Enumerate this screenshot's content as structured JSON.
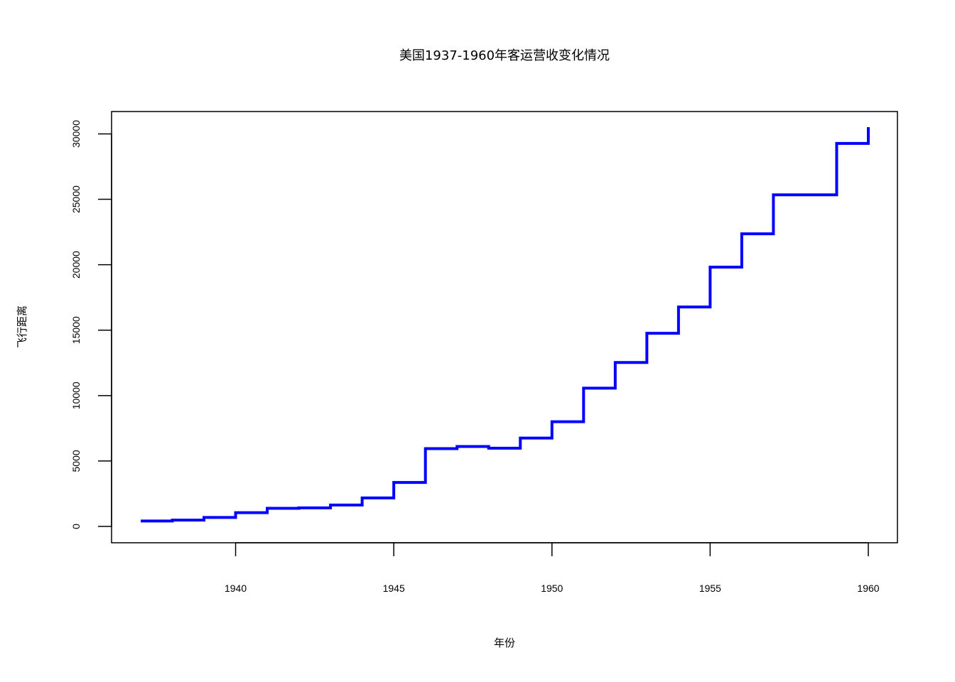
{
  "chart_data": {
    "type": "line",
    "step": true,
    "title": "美国1937-1960年客运营收变化情况",
    "xlabel": "年份",
    "ylabel": "飞行距离",
    "xlim": [
      1937,
      1960
    ],
    "ylim": [
      0,
      30514
    ],
    "x_ticks": [
      "1940",
      "1945",
      "1950",
      "1955",
      "1960"
    ],
    "y_ticks": [
      "0",
      "5000",
      "10000",
      "15000",
      "20000",
      "25000",
      "30000"
    ],
    "grid": false,
    "line_color": "#0000ff",
    "series": [
      {
        "x": [
          1937,
          1938,
          1939,
          1940,
          1941,
          1942,
          1943,
          1944,
          1945,
          1946,
          1947,
          1948,
          1949,
          1950,
          1951,
          1952,
          1953,
          1954,
          1955,
          1956,
          1957,
          1958,
          1959,
          1960
        ],
        "values": [
          412,
          480,
          683,
          1052,
          1385,
          1418,
          1634,
          2178,
          3362,
          5948,
          6109,
          5981,
          6753,
          8003,
          10566,
          12528,
          14760,
          16769,
          19819,
          22362,
          25340,
          25343,
          29269,
          30514
        ]
      }
    ]
  }
}
